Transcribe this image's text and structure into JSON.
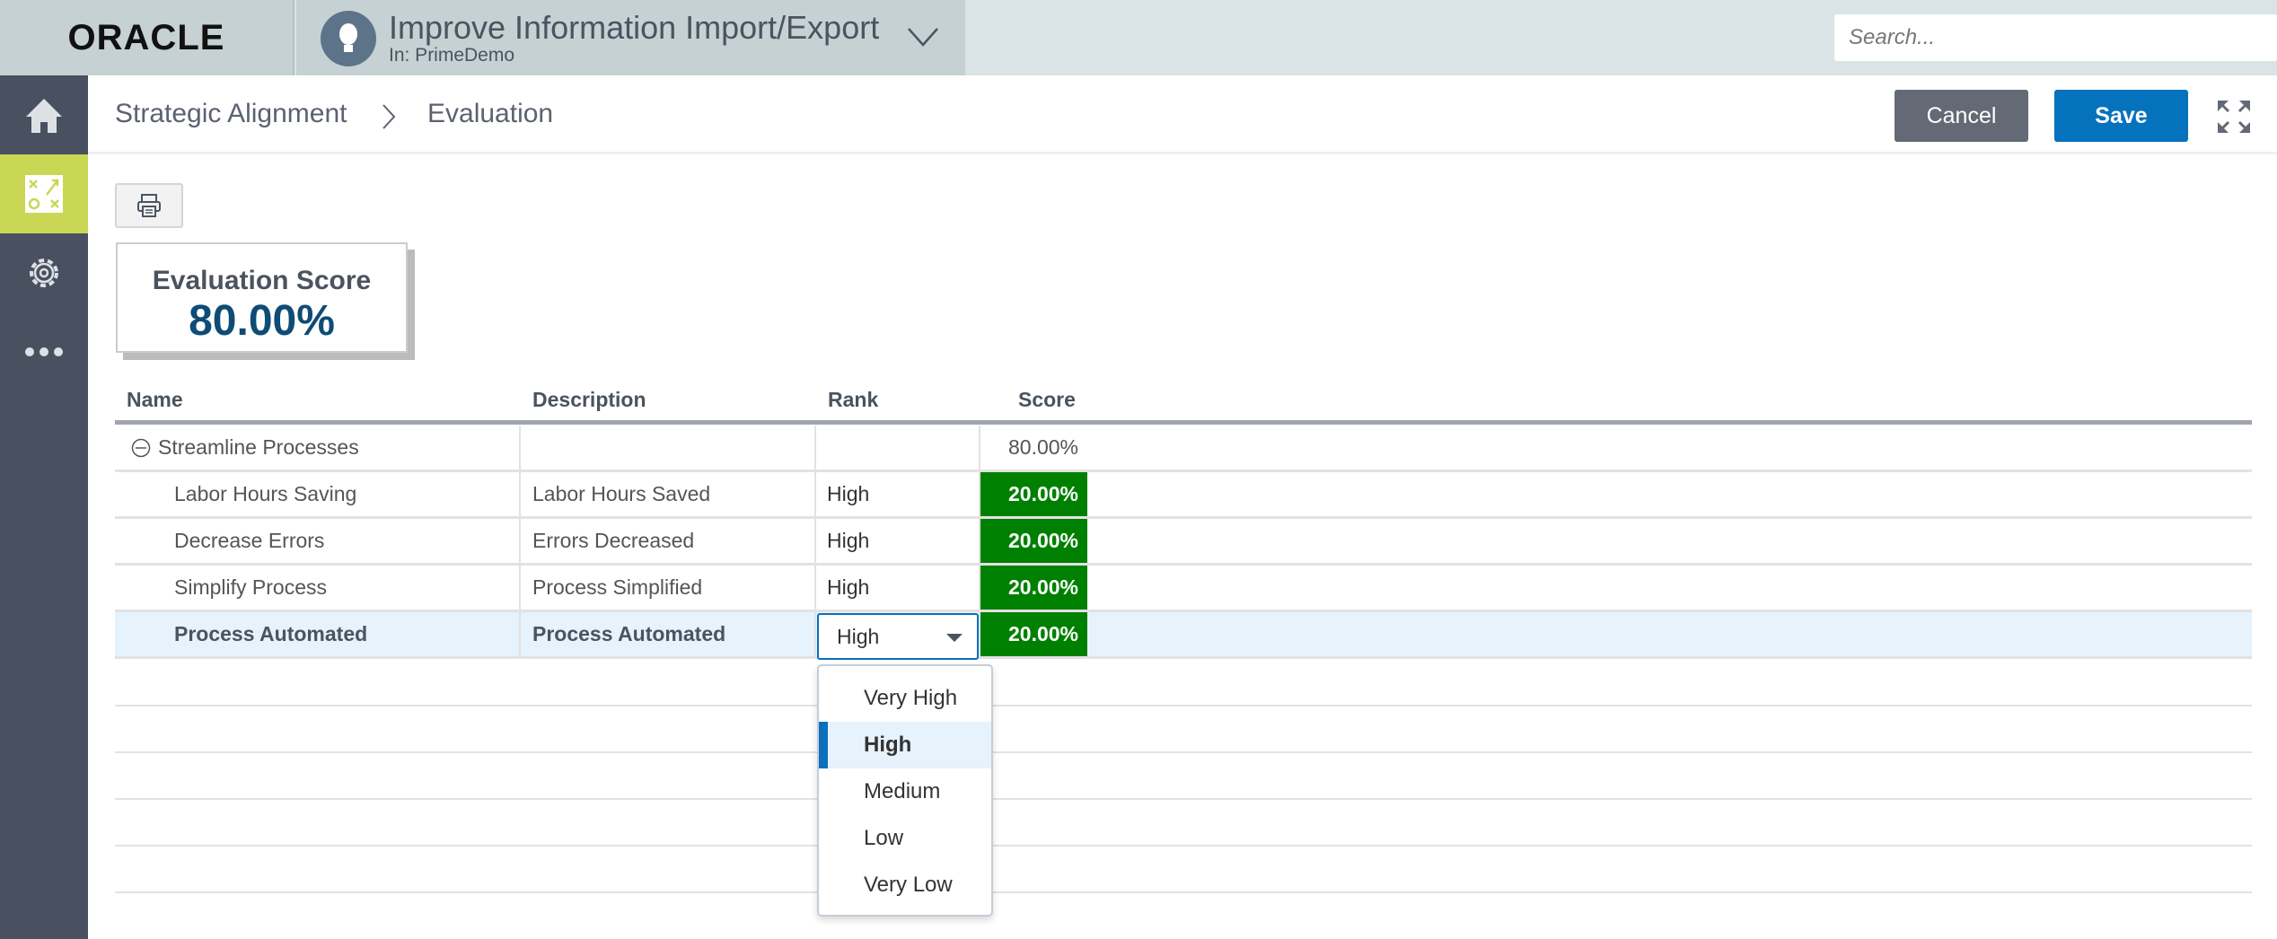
{
  "header": {
    "logo": "ORACLE",
    "project_title": "Improve Information Import/Export",
    "project_sub": "In: PrimeDemo",
    "search_placeholder": "Search..."
  },
  "sidebar": {
    "items": [
      {
        "icon": "home-icon"
      },
      {
        "icon": "strategy-icon",
        "active": true
      },
      {
        "icon": "gear-icon"
      },
      {
        "icon": "more-icon"
      }
    ],
    "active_color": "#c9d755"
  },
  "breadcrumb": {
    "items": [
      "Strategic Alignment",
      "Evaluation"
    ]
  },
  "toolbar": {
    "cancel_label": "Cancel",
    "save_label": "Save"
  },
  "score": {
    "label": "Evaluation Score",
    "value": "80.00%"
  },
  "table": {
    "columns": [
      "Name",
      "Description",
      "Rank",
      "Score"
    ],
    "group": {
      "name": "Streamline Processes",
      "score": "80.00%"
    },
    "rows": [
      {
        "name": "Labor Hours Saving",
        "description": "Labor Hours Saved",
        "rank": "High",
        "score": "20.00%"
      },
      {
        "name": "Decrease Errors",
        "description": "Errors Decreased",
        "rank": "High",
        "score": "20.00%"
      },
      {
        "name": "Simplify Process",
        "description": "Process Simplified",
        "rank": "High",
        "score": "20.00%"
      },
      {
        "name": "Process Automated",
        "description": "Process Automated",
        "rank": "High",
        "score": "20.00%"
      }
    ],
    "score_color": "#008000"
  },
  "rank_dropdown": {
    "selected": "High",
    "options": [
      "Very High",
      "High",
      "Medium",
      "Low",
      "Very Low"
    ]
  }
}
